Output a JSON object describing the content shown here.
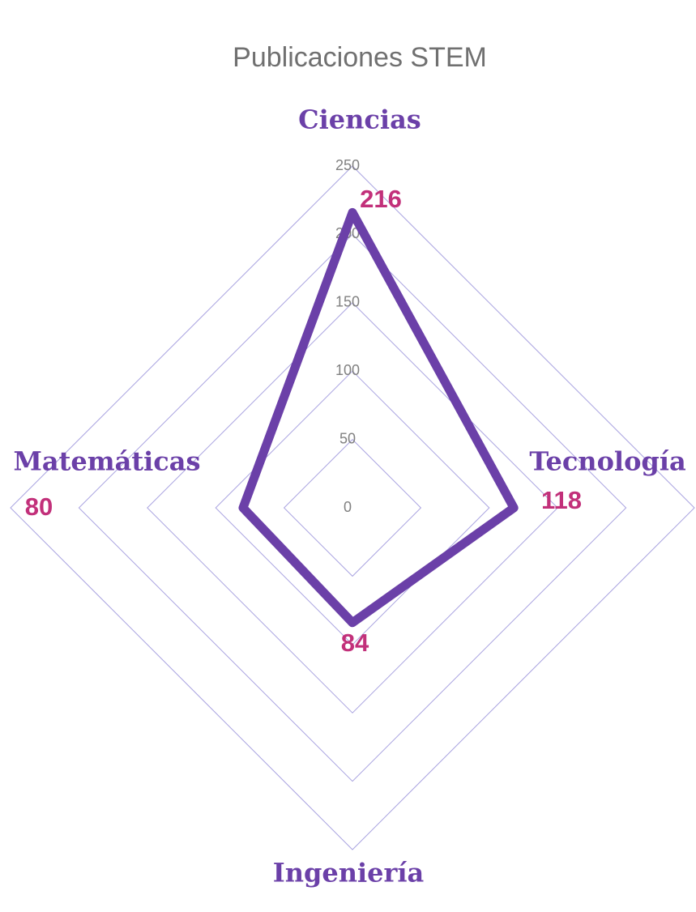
{
  "chart_data": {
    "type": "radar",
    "title": "Publicaciones STEM",
    "categories": [
      "Ciencias",
      "Tecnología",
      "Ingeniería",
      "Matemáticas"
    ],
    "values": [
      216,
      118,
      84,
      80
    ],
    "color": "#6b40a8",
    "label_color": "#c2307a",
    "grid_color": "#a9a3e0",
    "ylim": [
      0,
      250
    ],
    "yticks": [
      0,
      50,
      100,
      150,
      200,
      250
    ],
    "grid": true
  }
}
